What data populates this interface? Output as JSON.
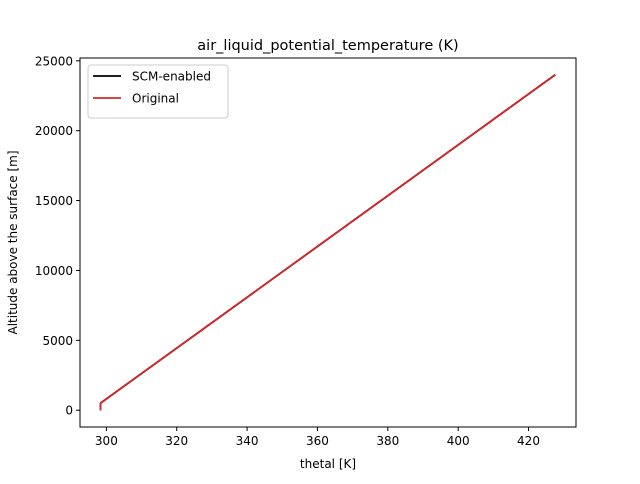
{
  "chart_data": {
    "type": "line",
    "title": "air_liquid_potential_temperature (K)",
    "xlabel": "thetal [K]",
    "ylabel": "Altitude above the surface [m]",
    "xlim": [
      292.5,
      433.5
    ],
    "ylim": [
      -1200,
      25200
    ],
    "xticks": [
      300,
      320,
      340,
      360,
      380,
      400,
      420
    ],
    "yticks": [
      0,
      5000,
      10000,
      15000,
      20000,
      25000
    ],
    "grid": false,
    "legend_position": "upper-left",
    "series": [
      {
        "name": "SCM-enabled",
        "color": "#000000",
        "x": [
          298.3,
          298.3,
          298.4,
          427.6
        ],
        "y": [
          0,
          300,
          520,
          24000
        ]
      },
      {
        "name": "Original",
        "color": "#d62728",
        "x": [
          298.3,
          298.3,
          298.4,
          427.6
        ],
        "y": [
          0,
          300,
          520,
          24000
        ]
      }
    ]
  }
}
